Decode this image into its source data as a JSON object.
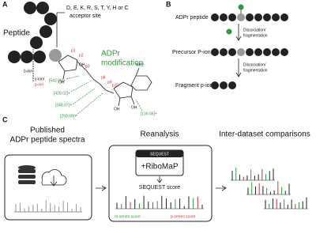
{
  "panel_a": {
    "letter": "A",
    "peptide": "Peptide",
    "b_ion": "b-ion",
    "y_ion": "y-ion/",
    "p_ion": "p-ion",
    "acceptor_residues": "D, E, K, R, S, T, Y, H or C",
    "acceptor_site": "acceptor site",
    "modification": [
      "ADPr",
      "modification"
    ],
    "fragment_masses": [
      "[542.06]+",
      "[428.02]+",
      "[348.07]+",
      "[250.09]+",
      "[136.06]+"
    ],
    "cleavage_labels": [
      "p1",
      "p2",
      "p3",
      "p8",
      "p9",
      "p10"
    ],
    "amine": "NH2",
    "hydroxyls": [
      "OH",
      "OH",
      "OH",
      "OH"
    ]
  },
  "panel_b": {
    "letter": "B",
    "adpr_peptide": "ADPr peptide",
    "steps": [
      [
        "Dissociation/",
        "fragmentation"
      ],
      [
        "Dissociation/",
        "fragmentation"
      ]
    ],
    "precursor": "Precursor P-ion",
    "fragment": "Fragment p-ion"
  },
  "panel_c": {
    "letter": "C",
    "columns": [
      [
        "Published",
        "ADPr peptide spectra"
      ],
      [
        "Reanalysis"
      ],
      [
        "Inter-dataset comparisons"
      ]
    ],
    "sequest": "SEQUEST",
    "ribomap": "+RiboMaP",
    "score": "SEQUEST score",
    "m_series": "m-series score",
    "p_series": "p-series score"
  }
}
